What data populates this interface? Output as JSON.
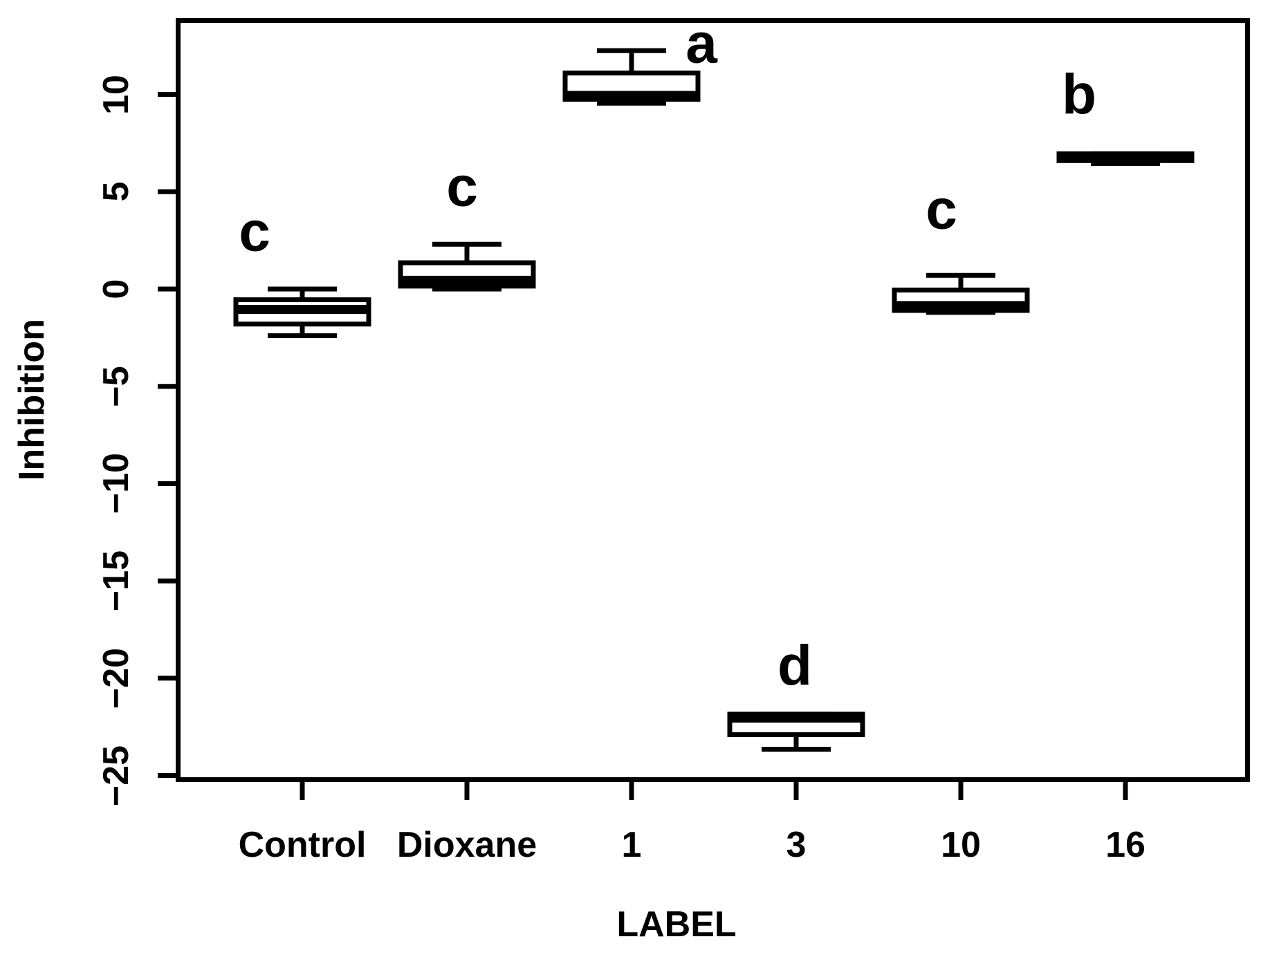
{
  "chart_data": {
    "type": "boxplot",
    "title": "",
    "xlabel": "LABEL",
    "ylabel": "Inhibition",
    "categories": [
      "Control",
      "Dioxane",
      "1",
      "3",
      "10",
      "16"
    ],
    "y_ticks": [
      {
        "label": "10",
        "value": 10
      },
      {
        "label": "5",
        "value": 5
      },
      {
        "label": "0",
        "value": 0
      },
      {
        "label": "−5",
        "value": -5
      },
      {
        "label": "−10",
        "value": -10
      },
      {
        "label": "−15",
        "value": -15
      },
      {
        "label": "−20",
        "value": -20
      },
      {
        "label": "−25",
        "value": -25
      }
    ],
    "ylim": [
      -25.1,
      13.7
    ],
    "grid": false,
    "legend": "none",
    "groups": [
      {
        "category": "Control",
        "letter": "c",
        "whisker_low": -2.4,
        "q1": -1.8,
        "median": -1.05,
        "q3": -0.55,
        "whisker_high": 0.0
      },
      {
        "category": "Dioxane",
        "letter": "c",
        "whisker_low": 0.0,
        "q1": 0.15,
        "median": 0.45,
        "q3": 1.35,
        "whisker_high": 2.3
      },
      {
        "category": "1",
        "letter": "a",
        "whisker_low": 9.55,
        "q1": 9.75,
        "median": 9.95,
        "q3": 11.1,
        "whisker_high": 12.25
      },
      {
        "category": "3",
        "letter": "d",
        "whisker_low": -23.65,
        "q1": -22.9,
        "median": -22.05,
        "q3": -21.85,
        "whisker_high": -21.85
      },
      {
        "category": "10",
        "letter": "c",
        "whisker_low": -1.2,
        "q1": -1.1,
        "median": -0.85,
        "q3": -0.05,
        "whisker_high": 0.7
      },
      {
        "category": "16",
        "letter": "b",
        "whisker_low": 6.45,
        "q1": 6.6,
        "median": 6.78,
        "q3": 6.95,
        "whisker_high": 6.95
      }
    ],
    "colors": {
      "foreground": "#000000",
      "background": "#ffffff",
      "box_fill": "#ffffff"
    }
  }
}
